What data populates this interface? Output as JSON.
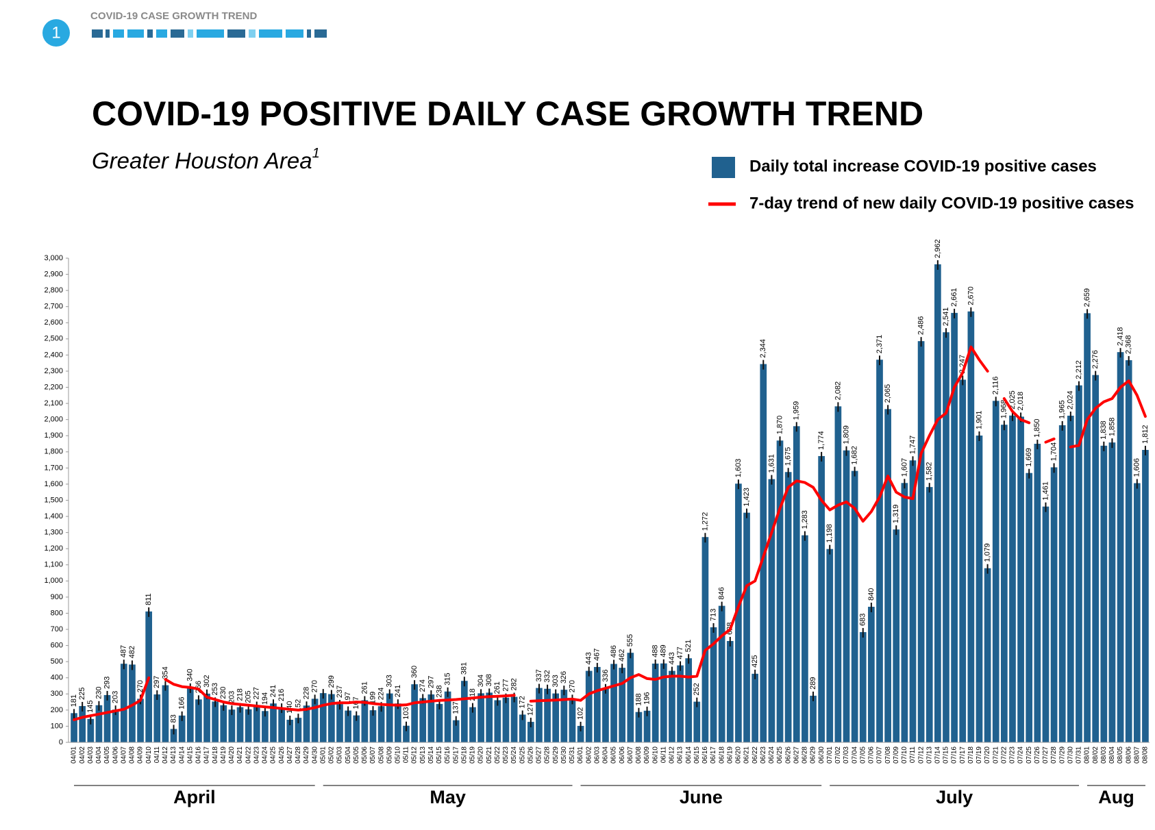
{
  "header": {
    "badge": "1",
    "section": "COVID-19 CASE GROWTH TREND"
  },
  "chart_data": {
    "type": "bar",
    "title": "COVID-19 POSITIVE DAILY CASE GROWTH TREND",
    "subtitle": "Greater Houston Area",
    "subtitle_note": "1",
    "categories": [
      "04/01",
      "04/02",
      "04/03",
      "04/04",
      "04/05",
      "04/06",
      "04/07",
      "04/08",
      "04/09",
      "04/10",
      "04/11",
      "04/12",
      "04/13",
      "04/14",
      "04/15",
      "04/16",
      "04/17",
      "04/18",
      "04/19",
      "04/20",
      "04/21",
      "04/22",
      "04/23",
      "04/24",
      "04/25",
      "04/26",
      "04/27",
      "04/28",
      "04/29",
      "04/30",
      "05/01",
      "05/02",
      "05/03",
      "05/04",
      "05/05",
      "05/06",
      "05/07",
      "05/08",
      "05/09",
      "05/10",
      "05/11",
      "05/12",
      "05/13",
      "05/14",
      "05/15",
      "05/16",
      "05/17",
      "05/18",
      "05/19",
      "05/20",
      "05/21",
      "05/22",
      "05/23",
      "05/24",
      "05/25",
      "05/26",
      "05/27",
      "05/28",
      "05/29",
      "05/30",
      "05/31",
      "06/01",
      "06/02",
      "06/03",
      "06/04",
      "06/05",
      "06/06",
      "06/07",
      "06/08",
      "06/09",
      "06/10",
      "06/11",
      "06/12",
      "06/13",
      "06/14",
      "06/15",
      "06/16",
      "06/17",
      "06/18",
      "06/19",
      "06/20",
      "06/21",
      "06/22",
      "06/23",
      "06/24",
      "06/25",
      "06/26",
      "06/27",
      "06/28",
      "06/29",
      "06/30",
      "07/01",
      "07/02",
      "07/03",
      "07/04",
      "07/05",
      "07/06",
      "07/07",
      "07/08",
      "07/09",
      "07/10",
      "07/11",
      "07/12",
      "07/13",
      "07/14",
      "07/15",
      "07/16",
      "07/17",
      "07/18",
      "07/19",
      "07/20",
      "07/21",
      "07/22",
      "07/23",
      "07/24",
      "07/25",
      "07/26",
      "07/27",
      "07/28",
      "07/29",
      "07/30",
      "07/31",
      "08/01",
      "08/02",
      "08/03",
      "08/04",
      "08/05",
      "08/06",
      "08/07",
      "08/08"
    ],
    "months": [
      "April",
      "May",
      "June",
      "July",
      "Aug"
    ],
    "series": [
      {
        "name": "Daily total increase COVID-19 positive cases",
        "type": "bar",
        "color": "#20618f",
        "values": [
          181,
          225,
          145,
          230,
          293,
          203,
          487,
          482,
          270,
          811,
          297,
          354,
          83,
          166,
          340,
          266,
          302,
          253,
          230,
          203,
          218,
          205,
          227,
          194,
          241,
          216,
          140,
          152,
          228,
          270,
          305,
          299,
          237,
          197,
          167,
          261,
          199,
          224,
          303,
          241,
          103,
          360,
          274,
          297,
          238,
          315,
          137,
          381,
          218,
          304,
          308,
          261,
          277,
          282,
          172,
          127,
          337,
          332,
          303,
          326,
          270,
          102,
          443,
          467,
          336,
          486,
          462,
          555,
          188,
          196,
          488,
          489,
          443,
          477,
          521,
          252,
          1272,
          713,
          846,
          628,
          1603,
          1423,
          425,
          2344,
          1631,
          1870,
          1675,
          1959,
          1283,
          289,
          1774,
          1198,
          2082,
          1809,
          1682,
          683,
          840,
          2371,
          2065,
          1319,
          1607,
          1747,
          2486,
          1582,
          2962,
          2541,
          2661,
          2247,
          2670,
          1901,
          1079,
          2116,
          1968,
          2025,
          2018,
          1669,
          1850,
          1461,
          1704,
          1965,
          2024,
          2212,
          2659,
          2276,
          1838,
          1858,
          2418,
          2368,
          1606,
          1812
        ],
        "value_labels": [
          "181",
          "225",
          "145",
          "230",
          "293",
          "203",
          "487",
          "482",
          "270",
          "811",
          "297",
          "354",
          "83",
          "166",
          "340",
          "266",
          "302",
          "253",
          "230",
          "203",
          "218",
          "205",
          "227",
          "194",
          "241",
          "216",
          "140",
          "152",
          "228",
          "270",
          null,
          "299",
          "237",
          "197",
          "167",
          "261",
          "199",
          "224",
          "303",
          "241",
          "103",
          "360",
          "274",
          "297",
          "238",
          "315",
          "137",
          "381",
          "218",
          "304",
          "308",
          "261",
          "277",
          "282",
          "172",
          "127",
          "337",
          "332",
          "303",
          "326",
          "270",
          "102",
          "443",
          "467",
          "336",
          "486",
          "462",
          "555",
          "188",
          "196",
          "488",
          "489",
          "443",
          "477",
          "521",
          "252",
          "1,272",
          "713",
          "846",
          "628",
          "1,603",
          "1,423",
          "425",
          "2,344",
          "1,631",
          "1,870",
          "1,675",
          "1,959",
          "1,283",
          "289",
          "1,774",
          "1,198",
          "2,082",
          "1,809",
          "1,682",
          "683",
          "840",
          "2,371",
          "2,065",
          "1,319",
          "1,607",
          "1,747",
          "2,486",
          "1,582",
          "2,962",
          "2,541",
          "2,661",
          "2,247",
          "2,670",
          "1,901",
          "1,079",
          "2,116",
          "1,968",
          "2,025",
          "2,018",
          "1,669",
          "1,850",
          "1,461",
          "1,704",
          "1,965",
          "2,024",
          "2,212",
          "2,659",
          "2,276",
          "1,838",
          "1,858",
          "2,418",
          "2,368",
          "1,606",
          "1,812"
        ]
      },
      {
        "name": "7-day trend of new daily COVID-19 positive cases",
        "type": "line",
        "color": "#ff0000",
        "values": [
          140,
          155,
          165,
          175,
          185,
          195,
          205,
          230,
          260,
          400,
          null,
          390,
          360,
          345,
          340,
          330,
          280,
          265,
          250,
          240,
          235,
          230,
          225,
          220,
          215,
          210,
          205,
          200,
          205,
          215,
          230,
          240,
          245,
          245,
          250,
          248,
          240,
          235,
          232,
          230,
          232,
          245,
          250,
          255,
          260,
          262,
          265,
          270,
          275,
          280,
          283,
          285,
          288,
          292,
          null,
          255,
          258,
          260,
          262,
          265,
          268,
          260,
          300,
          320,
          335,
          350,
          365,
          400,
          420,
          395,
          390,
          405,
          410,
          410,
          405,
          410,
          570,
          610,
          660,
          700,
          840,
          970,
          1000,
          1150,
          1300,
          1450,
          1580,
          1620,
          1610,
          1580,
          1500,
          1440,
          1470,
          1490,
          1450,
          1370,
          1430,
          1520,
          1650,
          1550,
          1520,
          1510,
          1790,
          1900,
          2000,
          2040,
          2200,
          2290,
          2450,
          2370,
          2300,
          null,
          2130,
          2050,
          2000,
          1980,
          null,
          1860,
          1880,
          null,
          1830,
          1840,
          2000,
          2070,
          2110,
          2130,
          2200,
          2240,
          2150,
          2020
        ]
      }
    ],
    "ylim": [
      0,
      3000
    ],
    "yticks": [
      0,
      100,
      200,
      300,
      400,
      500,
      600,
      700,
      800,
      900,
      {
        "value": 1000,
        "label": "1,000"
      },
      {
        "value": 1100,
        "label": "1,100"
      },
      {
        "value": 1200,
        "label": "1,200"
      },
      {
        "value": 1300,
        "label": "1,300"
      },
      {
        "value": 1400,
        "label": "1,400"
      },
      {
        "value": 1500,
        "label": "1,500"
      },
      {
        "value": 1600,
        "label": "1,600"
      },
      {
        "value": 1700,
        "label": "1,700"
      },
      {
        "value": 1800,
        "label": "1,800"
      },
      {
        "value": 1900,
        "label": "1,900"
      },
      {
        "value": 2000,
        "label": "2,000"
      },
      {
        "value": 2100,
        "label": "2,100"
      },
      {
        "value": 2200,
        "label": "2,200"
      },
      {
        "value": 2300,
        "label": "2,300"
      },
      {
        "value": 2400,
        "label": "2,400"
      },
      {
        "value": 2500,
        "label": "2,500"
      },
      {
        "value": 2600,
        "label": "2,600"
      },
      {
        "value": 2700,
        "label": "2,700"
      },
      {
        "value": 2800,
        "label": "2,800"
      },
      {
        "value": 2900,
        "label": "2,900"
      },
      {
        "value": 3000,
        "label": "3,000"
      }
    ],
    "grid": false,
    "legend": "top-right"
  }
}
